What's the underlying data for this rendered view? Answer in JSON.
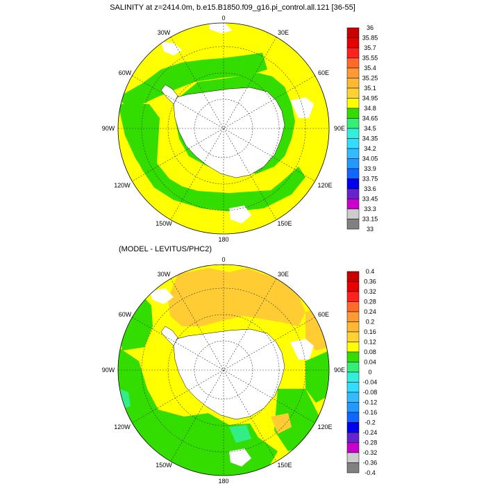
{
  "colors": {
    "land": "#ffffff",
    "yellow": "#ffff00",
    "green": "#33dd00",
    "orange": "#ffcc33",
    "teal": "#33ee88"
  },
  "top_panel": {
    "title": "SALINITY at z=2414.0m, b.e15.B1850.f09_g16.pi_control.all.121 [36-55]",
    "colorbar": {
      "labels": [
        "36",
        "35.85",
        "35.7",
        "35.55",
        "35.4",
        "35.25",
        "35.1",
        "34.95",
        "34.8",
        "34.65",
        "34.5",
        "34.35",
        "34.2",
        "34.05",
        "33.9",
        "33.75",
        "33.6",
        "33.45",
        "33.3",
        "33.15",
        "33"
      ],
      "colors": [
        "#c80000",
        "#e60000",
        "#ff2020",
        "#ff6a2a",
        "#ff9933",
        "#ffb833",
        "#ffd233",
        "#ffff00",
        "#33dd00",
        "#33ee77",
        "#33eedd",
        "#33ddff",
        "#33bbff",
        "#2299ff",
        "#1166ff",
        "#0000ee",
        "#6622cc",
        "#cc00cc",
        "#cccccc",
        "#808080"
      ]
    }
  },
  "bottom_panel": {
    "title": "(MODEL - LEVITUS/PHC2)",
    "colorbar": {
      "labels": [
        "0.4",
        "0.36",
        "0.32",
        "0.28",
        "0.24",
        "0.2",
        "0.16",
        "0.12",
        "0.08",
        "0.04",
        "0",
        "-0.04",
        "-0.08",
        "-0.12",
        "-0.16",
        "-0.2",
        "-0.24",
        "-0.28",
        "-0.32",
        "-0.36",
        "-0.4"
      ],
      "colors": [
        "#c80000",
        "#e60000",
        "#ff2020",
        "#ff6a2a",
        "#ff9933",
        "#ffb833",
        "#ffd233",
        "#ffff00",
        "#33dd00",
        "#33ee77",
        "#33eedd",
        "#33ddff",
        "#33bbff",
        "#2299ff",
        "#1166ff",
        "#0000ee",
        "#6622cc",
        "#cc00cc",
        "#cccccc",
        "#808080"
      ]
    }
  },
  "longitude_labels": {
    "top": "0",
    "bottom": "180",
    "left": "90W",
    "right": "90E",
    "upper_left_outer": "30W",
    "upper_left_inner": "60W",
    "upper_right_outer": "30E",
    "upper_right_inner": "60E",
    "lower_left_inner": "120W",
    "lower_left_outer": "150W",
    "lower_right_inner": "120E",
    "lower_right_outer": "150E"
  },
  "chart_data": [
    {
      "type": "heatmap",
      "title": "SALINITY at z=2414.0m, b.e15.B1850.f09_g16.pi_control.all.121 [36-55]",
      "projection": "polar stereographic (south pole)",
      "variable": "salinity",
      "colorbar_range": [
        33,
        36
      ],
      "colorbar_levels": [
        33,
        33.15,
        33.3,
        33.45,
        33.6,
        33.75,
        33.9,
        34.05,
        34.2,
        34.35,
        34.5,
        34.65,
        34.8,
        34.95,
        35.1,
        35.25,
        35.4,
        35.55,
        35.7,
        35.85,
        36
      ],
      "dominant_values": [
        "34.65-34.8 (green) in Pacific/Southern Ocean",
        "34.8-34.95 (yellow) in Atlantic & Indian sectors"
      ]
    },
    {
      "type": "heatmap",
      "title": "(MODEL - LEVITUS/PHC2)",
      "projection": "polar stereographic (south pole)",
      "variable": "salinity difference",
      "colorbar_range": [
        -0.4,
        0.4
      ],
      "colorbar_levels": [
        -0.4,
        -0.36,
        -0.32,
        -0.28,
        -0.24,
        -0.2,
        -0.16,
        -0.12,
        -0.08,
        -0.04,
        0,
        0.04,
        0.08,
        0.12,
        0.16,
        0.2,
        0.24,
        0.28,
        0.32,
        0.36,
        0.4
      ],
      "dominant_values": [
        "0.04-0.08 (green) widespread",
        "0.08-0.12 (yellow) broad bands",
        "0.12-0.16 (orange) near Weddell/Atlantic sector",
        "0-0.04 (light green) small patches"
      ]
    }
  ]
}
